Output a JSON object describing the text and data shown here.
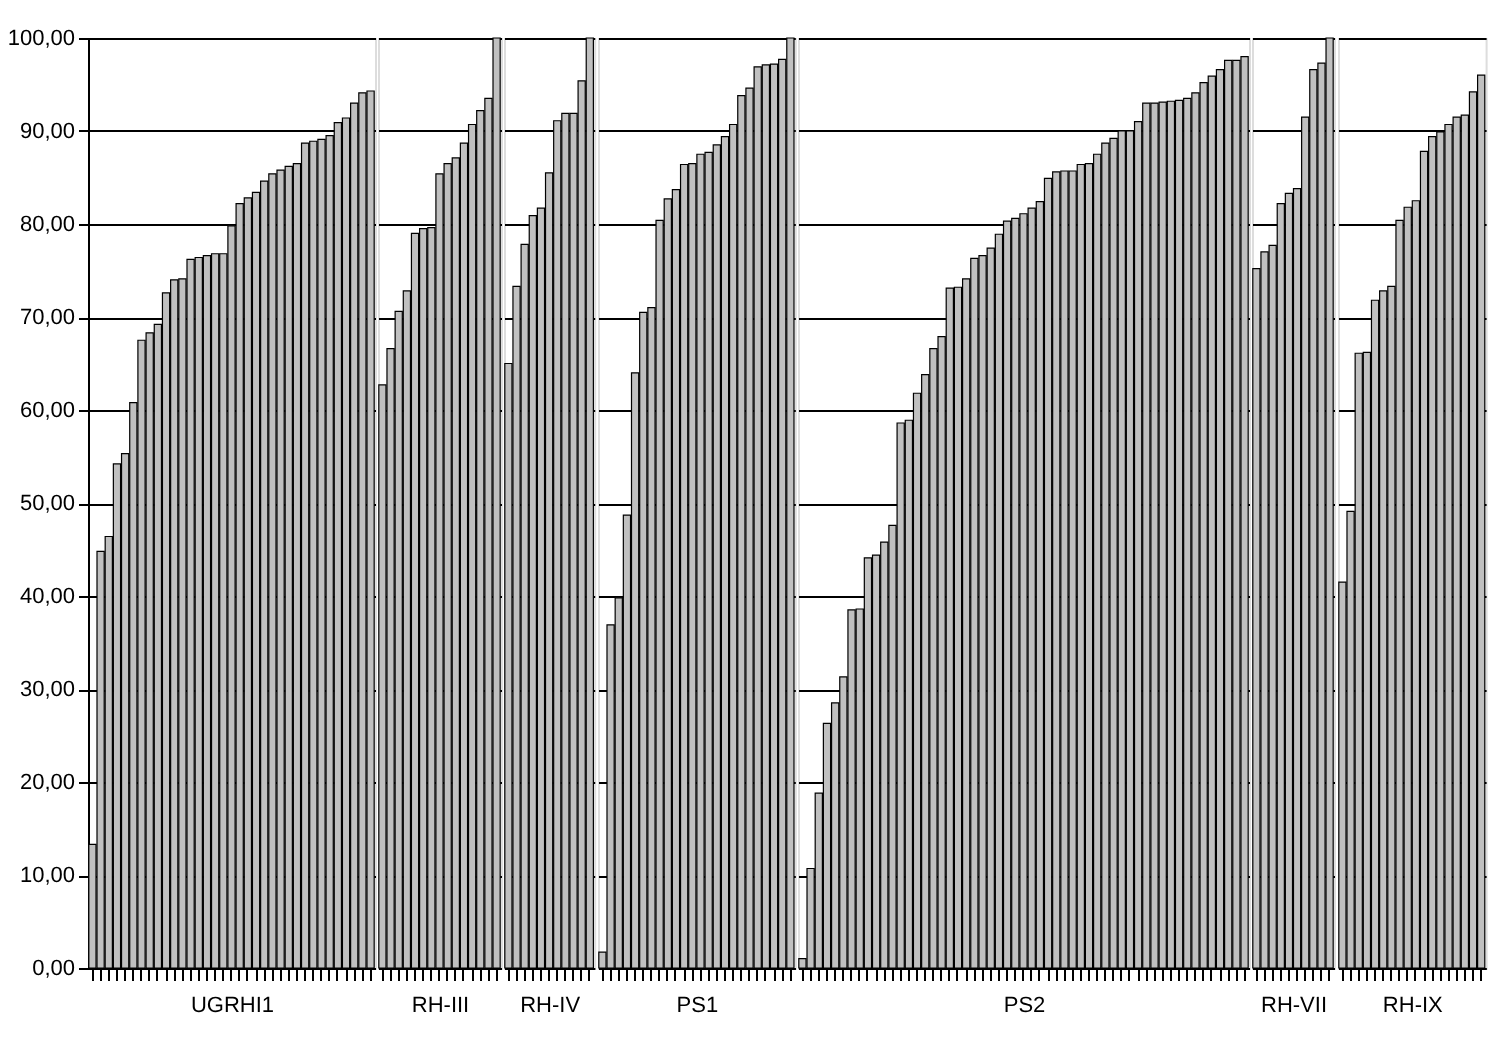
{
  "chart_data": [
    {
      "type": "bar",
      "xlabel": "UGRHI1",
      "tick_labels": "y",
      "grid": "y",
      "color": "#c0c0c0",
      "ylim": [
        0,
        100
      ],
      "yticks": [
        {
          "value": 0,
          "label": "0,00"
        },
        {
          "value": 10,
          "label": "10,00"
        },
        {
          "value": 20,
          "label": "20,00"
        },
        {
          "value": 30,
          "label": "30,00"
        },
        {
          "value": 40,
          "label": "40,00"
        },
        {
          "value": 50,
          "label": "50,00"
        },
        {
          "value": 60,
          "label": "60,00"
        },
        {
          "value": 70,
          "label": "70,00"
        },
        {
          "value": 80,
          "label": "80,00"
        },
        {
          "value": 90,
          "label": "90,00"
        },
        {
          "value": 100,
          "label": "100,00"
        }
      ],
      "categories": [
        null,
        null,
        null,
        null,
        null,
        null,
        null,
        null,
        null,
        null,
        null,
        null,
        null,
        null,
        null,
        null,
        null,
        null,
        null,
        null,
        null,
        null,
        null,
        null,
        null,
        null,
        null,
        null,
        null,
        null,
        null,
        null,
        null,
        null,
        null
      ],
      "values": [
        13.3,
        44.8,
        46.4,
        54.2,
        55.3,
        60.8,
        67.5,
        68.3,
        69.2,
        72.6,
        74.0,
        74.1,
        76.2,
        76.4,
        76.6,
        76.8,
        76.8,
        79.8,
        82.2,
        82.8,
        83.4,
        84.6,
        85.4,
        85.8,
        86.2,
        86.5,
        88.7,
        88.9,
        89.1,
        89.5,
        90.9,
        91.4,
        93.0,
        94.1,
        94.3
      ]
    },
    {
      "type": "bar",
      "xlabel": "RH-III",
      "tick_labels": false,
      "grid": "y",
      "color": "#c0c0c0",
      "ylim": [
        0,
        100
      ],
      "categories": [
        null,
        null,
        null,
        null,
        null,
        null,
        null,
        null,
        null,
        null,
        null,
        null,
        null,
        null,
        null
      ],
      "values": [
        62.7,
        66.6,
        70.6,
        72.8,
        79.0,
        79.5,
        79.6,
        85.4,
        86.5,
        87.1,
        88.7,
        90.7,
        92.2,
        93.5,
        100.0
      ]
    },
    {
      "type": "bar",
      "xlabel": "RH-IV",
      "tick_labels": false,
      "grid": "y",
      "color": "#c0c0c0",
      "ylim": [
        0,
        100
      ],
      "categories": [
        null,
        null,
        null,
        null,
        null,
        null,
        null,
        null,
        null,
        null,
        null
      ],
      "values": [
        65.0,
        73.3,
        77.8,
        80.9,
        81.7,
        85.5,
        91.1,
        91.9,
        91.9,
        95.4,
        100.0
      ]
    },
    {
      "type": "bar",
      "xlabel": "PS1",
      "tick_labels": false,
      "grid": "y",
      "color": "#c0c0c0",
      "ylim": [
        0,
        100
      ],
      "categories": [
        null,
        null,
        null,
        null,
        null,
        null,
        null,
        null,
        null,
        null,
        null,
        null,
        null,
        null,
        null,
        null,
        null,
        null,
        null,
        null,
        null,
        null,
        null,
        null
      ],
      "values": [
        1.7,
        36.9,
        39.8,
        48.7,
        64.0,
        70.5,
        71.0,
        80.4,
        82.7,
        83.7,
        86.4,
        86.5,
        87.5,
        87.7,
        88.5,
        89.4,
        90.7,
        93.8,
        94.6,
        96.9,
        97.1,
        97.2,
        97.7,
        100.0
      ]
    },
    {
      "type": "bar",
      "xlabel": "PS2",
      "tick_labels": false,
      "grid": "y",
      "color": "#c0c0c0",
      "ylim": [
        0,
        100
      ],
      "categories": [
        null,
        null,
        null,
        null,
        null,
        null,
        null,
        null,
        null,
        null,
        null,
        null,
        null,
        null,
        null,
        null,
        null,
        null,
        null,
        null,
        null,
        null,
        null,
        null,
        null,
        null,
        null,
        null,
        null,
        null,
        null,
        null,
        null,
        null,
        null,
        null,
        null,
        null,
        null,
        null,
        null,
        null,
        null,
        null,
        null,
        null,
        null,
        null,
        null,
        null,
        null,
        null,
        null,
        null,
        null
      ],
      "values": [
        1.0,
        10.7,
        18.8,
        26.3,
        28.5,
        31.3,
        38.5,
        38.6,
        44.1,
        44.4,
        45.8,
        47.6,
        58.6,
        58.9,
        61.8,
        63.8,
        66.6,
        67.9,
        73.1,
        73.2,
        74.1,
        76.3,
        76.6,
        77.4,
        78.9,
        80.3,
        80.6,
        81.1,
        81.7,
        82.4,
        84.9,
        85.6,
        85.7,
        85.7,
        86.4,
        86.5,
        87.5,
        88.7,
        89.2,
        90.0,
        90.0,
        91.0,
        93.0,
        93.0,
        93.1,
        93.2,
        93.3,
        93.5,
        94.1,
        95.2,
        95.9,
        96.6,
        97.6,
        97.6,
        98.0
      ]
    },
    {
      "type": "bar",
      "xlabel": "RH-VII",
      "tick_labels": false,
      "grid": "y",
      "color": "#c0c0c0",
      "ylim": [
        0,
        100
      ],
      "categories": [
        null,
        null,
        null,
        null,
        null,
        null,
        null,
        null,
        null,
        null
      ],
      "values": [
        75.2,
        77.0,
        77.7,
        82.2,
        83.3,
        83.8,
        91.5,
        96.6,
        97.3,
        100.0
      ]
    },
    {
      "type": "bar",
      "xlabel": "RH-IX",
      "tick_labels": false,
      "grid": "y",
      "color": "#c0c0c0",
      "ylim": [
        0,
        100
      ],
      "categories": [
        null,
        null,
        null,
        null,
        null,
        null,
        null,
        null,
        null,
        null,
        null,
        null,
        null,
        null,
        null,
        null,
        null,
        null
      ],
      "values": [
        41.5,
        49.1,
        66.1,
        66.2,
        71.8,
        72.8,
        73.3,
        80.4,
        81.8,
        82.5,
        87.8,
        89.4,
        89.9,
        90.7,
        91.5,
        91.7,
        94.2,
        96.0
      ]
    }
  ]
}
